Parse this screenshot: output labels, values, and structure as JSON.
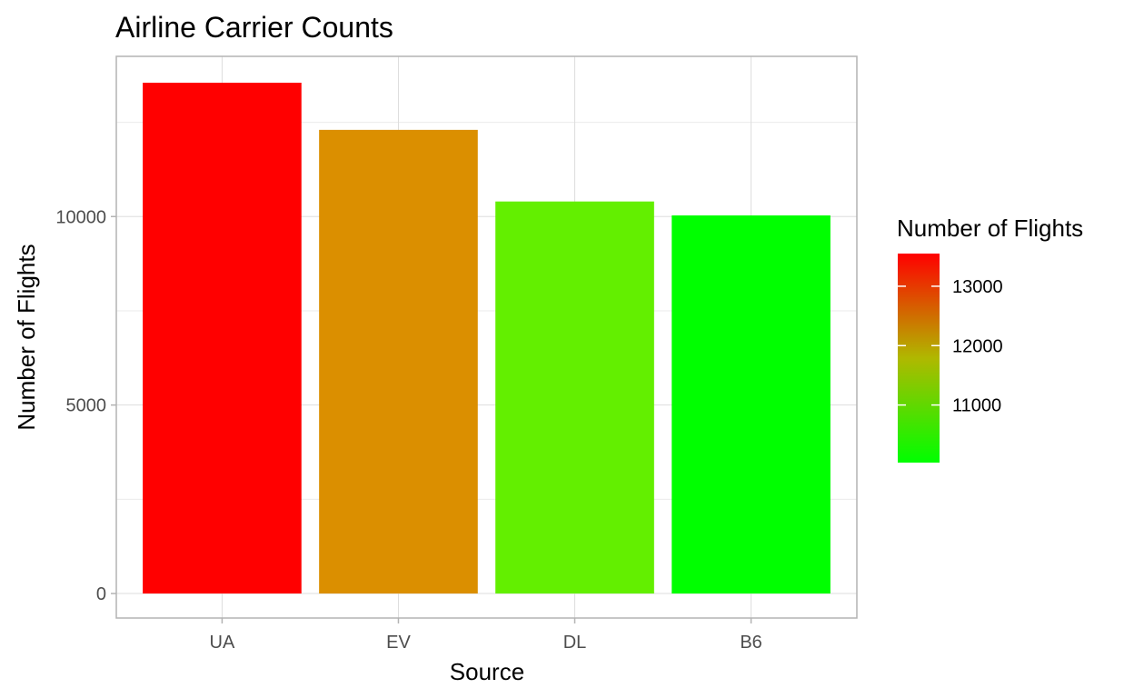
{
  "chart_data": {
    "type": "bar",
    "title": "Airline Carrier Counts",
    "xlabel": "Source",
    "ylabel": "Number of Flights",
    "categories": [
      "UA",
      "EV",
      "DL",
      "B6"
    ],
    "values": [
      13550,
      12300,
      10400,
      10030
    ],
    "ylim": [
      -650,
      14250
    ],
    "y_ticks": [
      0,
      5000,
      10000
    ],
    "y_tick_labels": [
      "0",
      "5000",
      "10000"
    ],
    "grid": true,
    "legend": {
      "title": "Number of Flights",
      "position": "right",
      "type": "colorbar",
      "range": [
        10030,
        13550
      ],
      "ticks": [
        11000,
        12000,
        13000
      ],
      "tick_labels": [
        "11000",
        "12000",
        "13000"
      ],
      "low_color": "#00FF00",
      "high_color": "#FF0000"
    },
    "bar_colors": [
      "#FF0000",
      "#DB8F00",
      "#63EF00",
      "#00FF00"
    ]
  }
}
